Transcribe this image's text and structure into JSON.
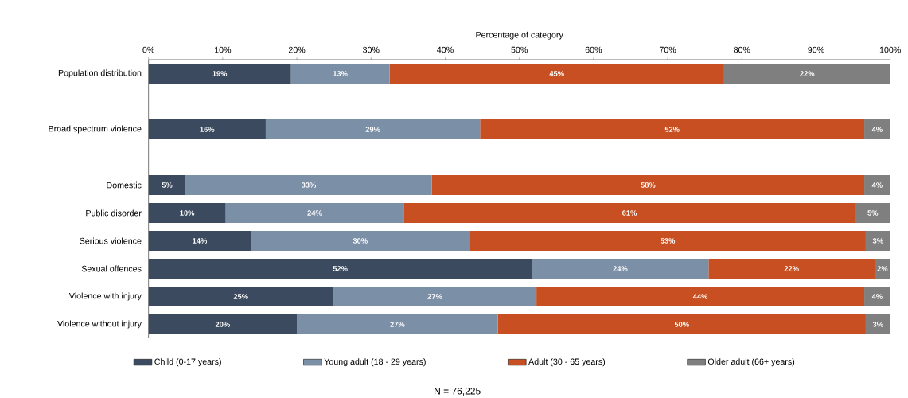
{
  "chart_data": {
    "type": "bar",
    "orientation": "horizontal",
    "stacked": true,
    "xlabel": "Percentage of category",
    "categories": [
      "Population distribution",
      null,
      "Broad spectrum violence",
      null,
      "Domestic",
      "Public disorder",
      "Serious violence",
      "Sexual offences",
      "Violence with injury",
      "Violence without injury"
    ],
    "series": [
      {
        "name": "Child (0-17 years)",
        "color": "#3b4a5e",
        "values": [
          19.2,
          null,
          15.8,
          null,
          5.0,
          10.4,
          13.8,
          51.7,
          24.9,
          20.0
        ],
        "value_labels": [
          "19%",
          null,
          "16%",
          null,
          "5%",
          "10%",
          "14%",
          "52%",
          "25%",
          "20%"
        ]
      },
      {
        "name": "Young adult (18 - 29 years)",
        "color": "#7b8fa6",
        "values": [
          13.3,
          null,
          28.9,
          null,
          33.2,
          24.0,
          29.5,
          23.8,
          27.4,
          27.1
        ],
        "value_labels": [
          "13%",
          null,
          "29%",
          null,
          "33%",
          "24%",
          "30%",
          "24%",
          "27%",
          "27%"
        ]
      },
      {
        "name": "Adult (30 - 65 years)",
        "color": "#c84f21",
        "values": [
          45.1,
          null,
          51.8,
          null,
          58.3,
          60.9,
          53.4,
          22.4,
          44.2,
          49.6
        ],
        "value_labels": [
          "45%",
          null,
          "52%",
          null,
          "58%",
          "61%",
          "53%",
          "22%",
          "44%",
          "50%"
        ]
      },
      {
        "name": "Older adult (66+ years)",
        "color": "#7f7f7f",
        "values": [
          22.4,
          null,
          3.5,
          null,
          3.5,
          4.7,
          3.3,
          2.1,
          3.5,
          3.3
        ],
        "value_labels": [
          "22%",
          null,
          "4%",
          null,
          "4%",
          "5%",
          "3%",
          "2%",
          "4%",
          "3%"
        ]
      }
    ],
    "xlim": [
      0,
      100
    ],
    "xticks": [
      {
        "value": 0,
        "label": "0%"
      },
      {
        "value": 10,
        "label": "10%"
      },
      {
        "value": 20,
        "label": "20%"
      },
      {
        "value": 30,
        "label": "30%"
      },
      {
        "value": 40,
        "label": "40%"
      },
      {
        "value": 50,
        "label": "50%"
      },
      {
        "value": 60,
        "label": "60%"
      },
      {
        "value": 70,
        "label": "70%"
      },
      {
        "value": 80,
        "label": "80%"
      },
      {
        "value": 90,
        "label": "90%"
      },
      {
        "value": 100,
        "label": "100%"
      }
    ],
    "legend": "bottom",
    "annotations": [
      "N = 76,225"
    ]
  }
}
